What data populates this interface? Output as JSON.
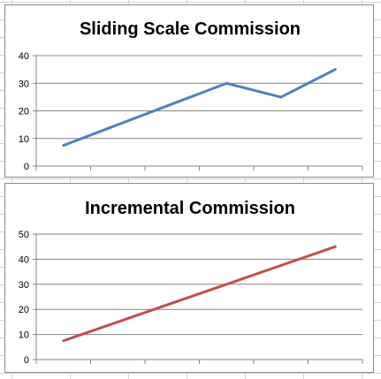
{
  "chart_data": [
    {
      "type": "line",
      "title": "Sliding Scale Commission",
      "xlabel": "",
      "ylabel": "",
      "x": [
        1,
        2,
        3,
        4,
        5,
        6
      ],
      "series": [
        {
          "values": [
            7.5,
            15,
            22.5,
            30,
            25,
            35
          ],
          "color": "#4f81bd"
        }
      ],
      "ylim": [
        0,
        40
      ],
      "yticks": [
        0,
        10,
        20,
        30,
        40
      ],
      "grid": true,
      "legend": "none"
    },
    {
      "type": "line",
      "title": "Incremental Commission",
      "xlabel": "",
      "ylabel": "",
      "x": [
        1,
        2,
        3,
        4,
        5,
        6
      ],
      "series": [
        {
          "values": [
            7.5,
            15,
            22.5,
            30,
            37.5,
            45
          ],
          "color": "#c0504d"
        }
      ],
      "ylim": [
        0,
        50
      ],
      "yticks": [
        0,
        10,
        20,
        30,
        40,
        50
      ],
      "grid": true,
      "legend": "none"
    }
  ]
}
